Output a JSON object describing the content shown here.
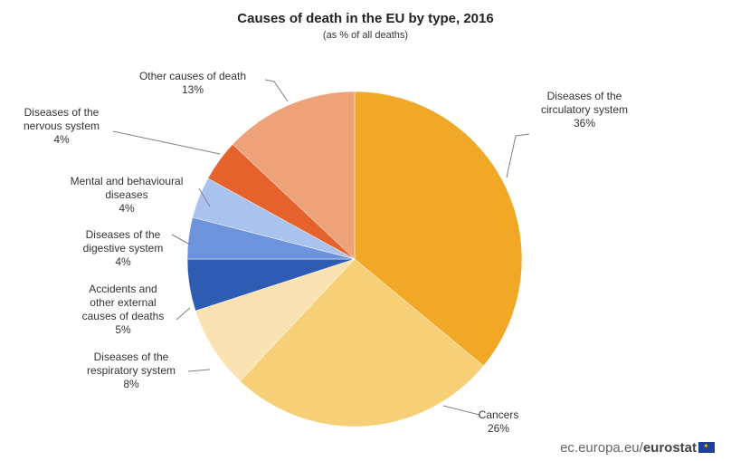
{
  "chart_data": {
    "type": "pie",
    "title": "Causes of death in the EU by type, 2016",
    "subtitle": "(as % of all deaths)",
    "slices": [
      {
        "label": [
          "Diseases of the",
          "circulatory system"
        ],
        "value": 36,
        "value_label": "36%",
        "color": "#f0a826"
      },
      {
        "label": [
          "Cancers"
        ],
        "value": 26,
        "value_label": "26%",
        "color": "#f7cf76"
      },
      {
        "label": [
          "Diseases of the",
          "respiratory system"
        ],
        "value": 8,
        "value_label": "8%",
        "color": "#fae2b2"
      },
      {
        "label": [
          "Accidents and",
          "other external",
          "causes of deaths"
        ],
        "value": 5,
        "value_label": "5%",
        "color": "#2f5cb3"
      },
      {
        "label": [
          "Diseases of the",
          "digestive system"
        ],
        "value": 4,
        "value_label": "4%",
        "color": "#6c93dc"
      },
      {
        "label": [
          "Mental and behavioural",
          "diseases"
        ],
        "value": 4,
        "value_label": "4%",
        "color": "#a9c3ee"
      },
      {
        "label": [
          "Diseases of the",
          "nervous system"
        ],
        "value": 4,
        "value_label": "4%",
        "color": "#e5622d"
      },
      {
        "label": [
          "Other causes of death"
        ],
        "value": 13,
        "value_label": "13%",
        "color": "#eda27a"
      }
    ],
    "legend": "none"
  },
  "source": {
    "prefix": "ec.europa.eu/",
    "brand": "eurostat"
  }
}
